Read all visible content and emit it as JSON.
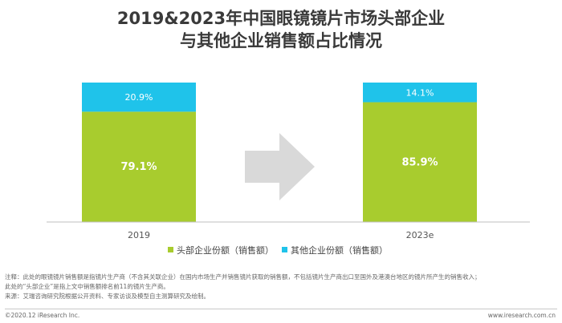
{
  "title": {
    "line1": "2019&2023年中国眼镜镜片市场头部企业",
    "line2": "与其他企业销售额占比情况"
  },
  "colors": {
    "head": "#a8cc2e",
    "other": "#1fc3ea",
    "arrow": "#d9d9d9",
    "axis": "#bfbfbf"
  },
  "chart_data": {
    "type": "bar",
    "stacked": true,
    "categories": [
      "2019",
      "2023e"
    ],
    "series": [
      {
        "name": "头部企业份额（销售额）",
        "values": [
          79.1,
          85.9
        ],
        "labels": [
          "79.1%",
          "85.9%"
        ],
        "color": "#a8cc2e"
      },
      {
        "name": "其他企业份额（销售额）",
        "values": [
          20.9,
          14.1
        ],
        "labels": [
          "20.9%",
          "14.1%"
        ],
        "color": "#1fc3ea"
      }
    ],
    "ylim": [
      0,
      100
    ],
    "legend_position": "bottom",
    "annotation": "arrow between bars"
  },
  "notes": {
    "line1": "注释：此处的眼镜镜片销售额是指镜片生产商（不含其关联企业）在国内市场生产并销售镜片获取的销售额，不包括镜片生产商出口至国外及港澳台地区的镜片所产生的销售收入；",
    "line2": "此处的“头部企业”是指上文中销售额排名前11的镜片生产商。",
    "line3": "来源：艾瑞咨询研究院根据公开资料、专家访谈及模型自主测算研究及绘制。"
  },
  "footer": {
    "left": "©2020.12 iResearch Inc.",
    "right": "www.iresearch.com.cn"
  }
}
